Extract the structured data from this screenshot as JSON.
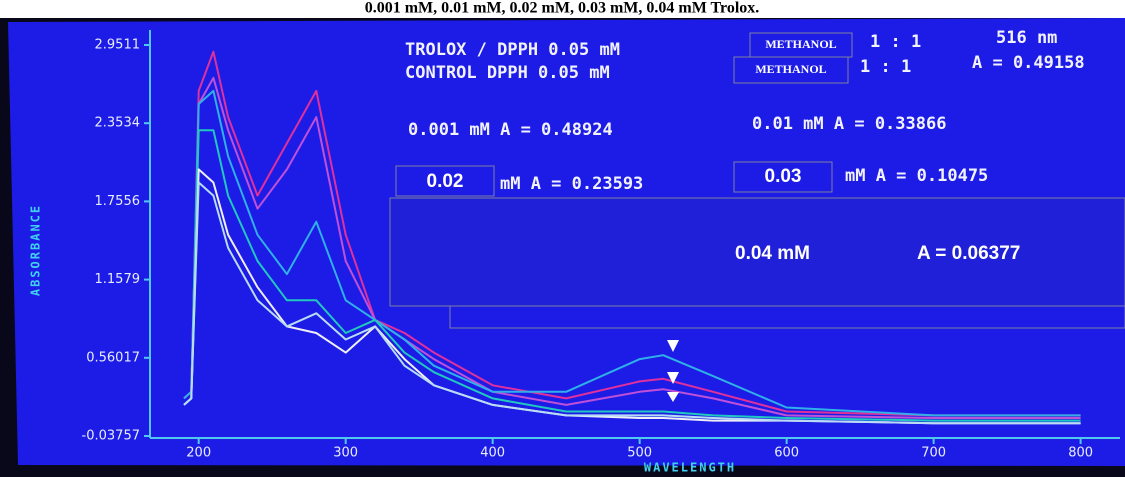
{
  "chart_data": {
    "type": "line",
    "title": "0.001 mM, 0.01 mM, 0.02 mM, 0.03 mM, 0.04 mM Trolox.",
    "y_label": "ABSORBANCE",
    "x_label": "WAVELENGTH",
    "x": [
      190,
      195,
      200,
      210,
      220,
      240,
      260,
      280,
      300,
      320,
      340,
      360,
      400,
      450,
      500,
      516,
      550,
      600,
      700,
      800
    ],
    "series": [
      {
        "color": "#e0309c",
        "values": [
          0.25,
          0.3,
          2.6,
          2.9,
          2.4,
          1.8,
          2.2,
          2.6,
          1.5,
          0.85,
          0.75,
          0.6,
          0.35,
          0.25,
          0.38,
          0.4,
          0.3,
          0.15,
          0.12,
          0.12
        ]
      },
      {
        "color": "#c050d8",
        "values": [
          0.25,
          0.3,
          2.5,
          2.7,
          2.3,
          1.7,
          2.0,
          2.4,
          1.3,
          0.85,
          0.7,
          0.55,
          0.3,
          0.2,
          0.3,
          0.32,
          0.25,
          0.12,
          0.1,
          0.1
        ]
      },
      {
        "color": "#30b0e8",
        "values": [
          0.25,
          0.3,
          2.5,
          2.6,
          2.1,
          1.5,
          1.2,
          1.6,
          1.0,
          0.85,
          0.7,
          0.5,
          0.3,
          0.3,
          0.55,
          0.58,
          0.42,
          0.18,
          0.12,
          0.12
        ]
      },
      {
        "color": "#20c8c0",
        "values": [
          0.2,
          0.25,
          2.3,
          2.3,
          1.8,
          1.3,
          1.0,
          1.0,
          0.75,
          0.85,
          0.6,
          0.45,
          0.25,
          0.15,
          0.15,
          0.15,
          0.12,
          0.1,
          0.08,
          0.08
        ]
      },
      {
        "color": "#eeeef8",
        "values": [
          0.2,
          0.25,
          2.0,
          1.9,
          1.5,
          1.1,
          0.8,
          0.75,
          0.6,
          0.8,
          0.55,
          0.35,
          0.2,
          0.12,
          0.1,
          0.1,
          0.08,
          0.08,
          0.06,
          0.06
        ]
      },
      {
        "color": "#b8dcf4",
        "values": [
          0.2,
          0.25,
          1.9,
          1.8,
          1.4,
          1.0,
          0.8,
          0.9,
          0.7,
          0.8,
          0.5,
          0.35,
          0.2,
          0.12,
          0.12,
          0.12,
          0.1,
          0.08,
          0.06,
          0.06
        ]
      }
    ],
    "xlim": [
      190,
      820
    ],
    "xticks": [
      200,
      300,
      400,
      500,
      600,
      700,
      800
    ],
    "ylim": [
      -0.03757,
      2.9511
    ],
    "yticks": [
      -0.03757,
      0.56017,
      1.1579,
      1.7556,
      2.3534,
      2.9511
    ],
    "grid": false
  },
  "annotations": {
    "trolox": "TROLOX / DPPH 0.05 mM",
    "solvent_1": "METHANOL",
    "ratio_1": "1 : 1",
    "wavelength": "516 nm",
    "control": "CONTROL DPPH 0.05 mM",
    "solvent_2": "METHANOL",
    "ratio_2": "1 : 1",
    "control_a": "A = 0.49158",
    "c0001": "0.001 mM A = 0.48924",
    "c001": "0.01 mM A = 0.33866",
    "c002_conc": "0.02",
    "c002_a": "mM A = 0.23593",
    "c003_conc": "0.03",
    "c003_a": "mM A = 0.10475",
    "c004_conc": "0.04  mM",
    "c004_a": "A = 0.06377"
  }
}
